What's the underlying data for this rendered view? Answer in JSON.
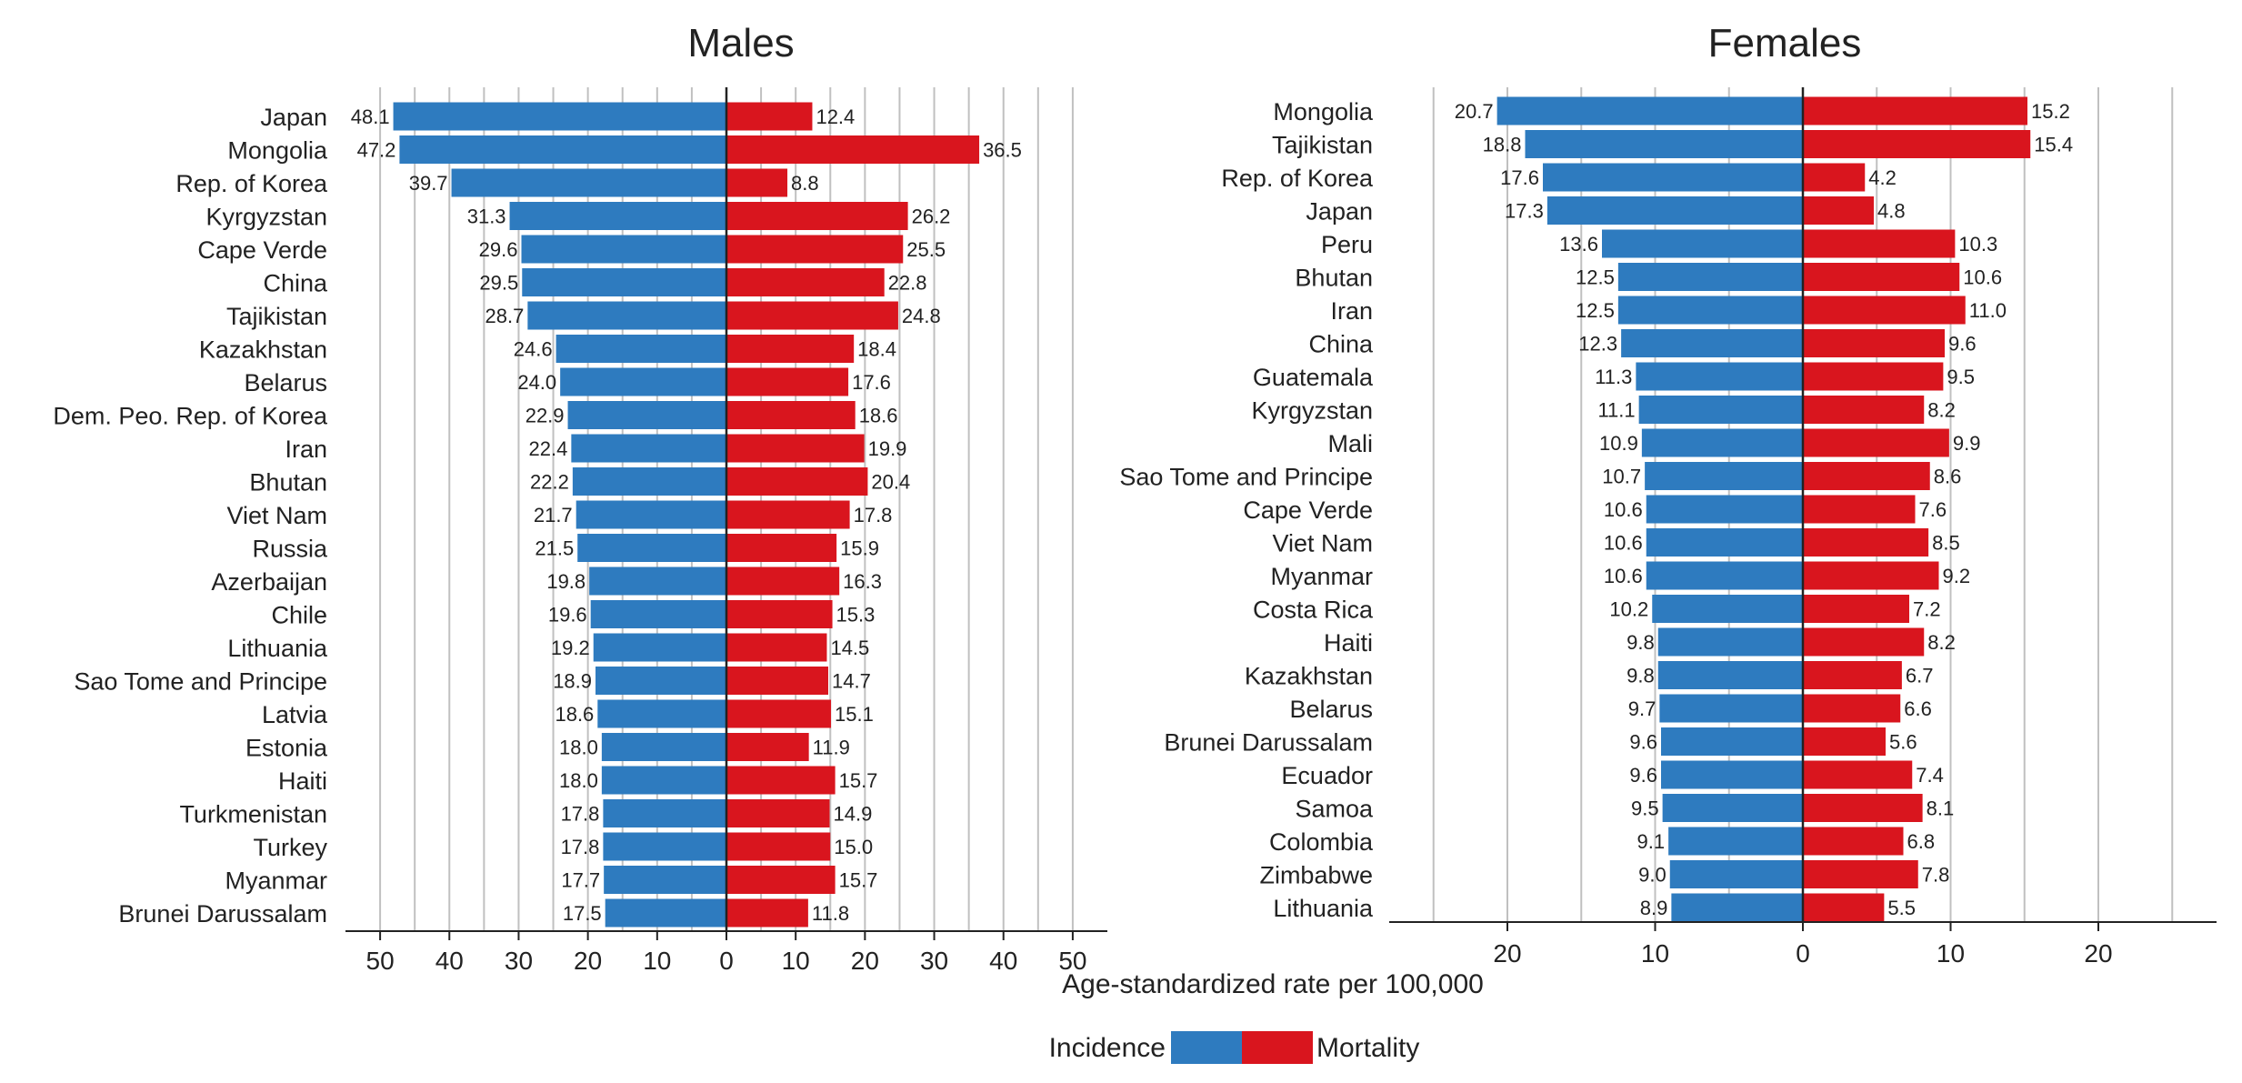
{
  "colors": {
    "incidence": "#2e7bbf",
    "mortality": "#d9151e",
    "grid": "#c0c0c0",
    "axis": "#222222"
  },
  "common": {
    "xlabel": "Age-standardized rate per 100,000",
    "legend": {
      "incidence": "Incidence",
      "mortality": "Mortality"
    }
  },
  "chart_data": [
    {
      "type": "bar",
      "title": "Males",
      "xlim": [
        -55,
        55
      ],
      "ticks": [
        -50,
        -40,
        -30,
        -20,
        -10,
        0,
        10,
        20,
        30,
        40,
        50
      ],
      "tick_labels": [
        "50",
        "40",
        "30",
        "20",
        "10",
        "0",
        "10",
        "20",
        "30",
        "40",
        "50"
      ],
      "grid": [
        -50,
        -45,
        -40,
        -35,
        -30,
        -25,
        -20,
        -15,
        -10,
        -5,
        5,
        10,
        15,
        20,
        25,
        30,
        35,
        40,
        45,
        50
      ],
      "categories": [
        "Japan",
        "Mongolia",
        "Rep. of Korea",
        "Kyrgyzstan",
        "Cape Verde",
        "China",
        "Tajikistan",
        "Kazakhstan",
        "Belarus",
        "Dem. Peo. Rep. of Korea",
        "Iran",
        "Bhutan",
        "Viet Nam",
        "Russia",
        "Azerbaijan",
        "Chile",
        "Lithuania",
        "Sao Tome and Principe",
        "Latvia",
        "Estonia",
        "Haiti",
        "Turkmenistan",
        "Turkey",
        "Myanmar",
        "Brunei Darussalam"
      ],
      "series": [
        {
          "name": "Incidence",
          "values": [
            48.1,
            47.2,
            39.7,
            31.3,
            29.6,
            29.5,
            28.7,
            24.6,
            24.0,
            22.9,
            22.4,
            22.2,
            21.7,
            21.5,
            19.8,
            19.6,
            19.2,
            18.9,
            18.6,
            18.0,
            18.0,
            17.8,
            17.8,
            17.7,
            17.5
          ],
          "labels": [
            "48.1",
            "47.2",
            "39.7",
            "31.3",
            "29.6",
            "29.5",
            "28.7",
            "24.6",
            "24.0",
            "22.9",
            "22.4",
            "22.2",
            "21.7",
            "21.5",
            "19.8",
            "19.6",
            "19.2",
            "18.9",
            "18.6",
            "18.0",
            "18.0",
            "17.8",
            "17.8",
            "17.7",
            "17.5"
          ]
        },
        {
          "name": "Mortality",
          "values": [
            12.4,
            36.5,
            8.8,
            26.2,
            25.5,
            22.8,
            24.8,
            18.4,
            17.6,
            18.6,
            19.9,
            20.4,
            17.8,
            15.9,
            16.3,
            15.3,
            14.5,
            14.7,
            15.1,
            11.9,
            15.7,
            14.9,
            15.0,
            15.7,
            11.8
          ],
          "labels": [
            "12.4",
            "36.5",
            "8.8",
            "26.2",
            "25.5",
            "22.8",
            "24.8",
            "18.4",
            "17.6",
            "18.6",
            "19.9",
            "20.4",
            "17.8",
            "15.9",
            "16.3",
            "15.3",
            "14.5",
            "14.7",
            "15.1",
            "11.9",
            "15.7",
            "14.9",
            "15.0",
            "15.7",
            "11.8"
          ]
        }
      ]
    },
    {
      "type": "bar",
      "title": "Females",
      "xlim": [
        -28,
        28
      ],
      "ticks": [
        -20,
        -10,
        0,
        10,
        20
      ],
      "tick_labels": [
        "20",
        "10",
        "0",
        "10",
        "20"
      ],
      "grid": [
        -25,
        -20,
        -15,
        -10,
        -5,
        5,
        10,
        15,
        20,
        25
      ],
      "categories": [
        "Mongolia",
        "Tajikistan",
        "Rep. of Korea",
        "Japan",
        "Peru",
        "Bhutan",
        "Iran",
        "China",
        "Guatemala",
        "Kyrgyzstan",
        "Mali",
        "Sao Tome and Principe",
        "Cape Verde",
        "Viet Nam",
        "Myanmar",
        "Costa Rica",
        "Haiti",
        "Kazakhstan",
        "Belarus",
        "Brunei Darussalam",
        "Ecuador",
        "Samoa",
        "Colombia",
        "Zimbabwe",
        "Lithuania"
      ],
      "series": [
        {
          "name": "Incidence",
          "values": [
            20.7,
            18.8,
            17.6,
            17.3,
            13.6,
            12.5,
            12.5,
            12.3,
            11.3,
            11.1,
            10.9,
            10.7,
            10.6,
            10.6,
            10.6,
            10.2,
            9.8,
            9.8,
            9.7,
            9.6,
            9.6,
            9.5,
            9.1,
            9.0,
            8.9
          ],
          "labels": [
            "20.7",
            "18.8",
            "17.6",
            "17.3",
            "13.6",
            "12.5",
            "12.5",
            "12.3",
            "11.3",
            "11.1",
            "10.9",
            "10.7",
            "10.6",
            "10.6",
            "10.6",
            "10.2",
            "9.8",
            "9.8",
            "9.7",
            "9.6",
            "9.6",
            "9.5",
            "9.1",
            "9.0",
            "8.9"
          ]
        },
        {
          "name": "Mortality",
          "values": [
            15.2,
            15.4,
            4.2,
            4.8,
            10.3,
            10.6,
            11.0,
            9.6,
            9.5,
            8.2,
            9.9,
            8.6,
            7.6,
            8.5,
            9.2,
            7.2,
            8.2,
            6.7,
            6.6,
            5.6,
            7.4,
            8.1,
            6.8,
            7.8,
            5.5
          ],
          "labels": [
            "15.2",
            "15.4",
            "4.2",
            "4.8",
            "10.3",
            "10.6",
            "11.0",
            "9.6",
            "9.5",
            "8.2",
            "9.9",
            "8.6",
            "7.6",
            "8.5",
            "9.2",
            "7.2",
            "8.2",
            "6.7",
            "6.6",
            "5.6",
            "7.4",
            "8.1",
            "6.8",
            "7.8",
            "5.5"
          ]
        }
      ]
    }
  ]
}
